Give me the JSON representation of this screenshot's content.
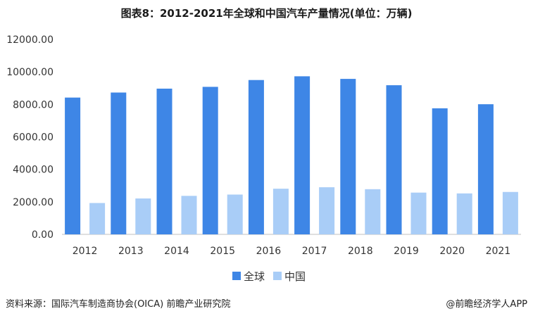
{
  "title": "图表8：2012-2021年全球和中国汽车产量情况(单位：万辆)",
  "footer": {
    "source": "资料来源：国际汽车制造商协会(OICA) 前瞻产业研究院",
    "brand": "@前瞻经济学人APP"
  },
  "colors": {
    "global": "#3e86e6",
    "china": "#a9cdf7",
    "grid": "#e3e3e3",
    "axis": "#bfbfbf"
  },
  "chart_data": {
    "type": "bar",
    "title": "图表8：2012-2021年全球和中国汽车产量情况(单位：万辆)",
    "categories": [
      "2012",
      "2013",
      "2014",
      "2015",
      "2016",
      "2017",
      "2018",
      "2019",
      "2020",
      "2021"
    ],
    "series": [
      {
        "name": "全球",
        "values": [
          8420,
          8730,
          8970,
          9080,
          9500,
          9730,
          9570,
          9180,
          7760,
          8010
        ]
      },
      {
        "name": "中国",
        "values": [
          1930,
          2210,
          2370,
          2450,
          2810,
          2900,
          2780,
          2570,
          2520,
          2610
        ]
      }
    ],
    "yticks": [
      "0.00",
      "2000.00",
      "4000.00",
      "6000.00",
      "8000.00",
      "10000.00",
      "12000.00"
    ],
    "ylim": [
      0,
      12000
    ],
    "grid": false,
    "legend_position": "bottom-center"
  }
}
